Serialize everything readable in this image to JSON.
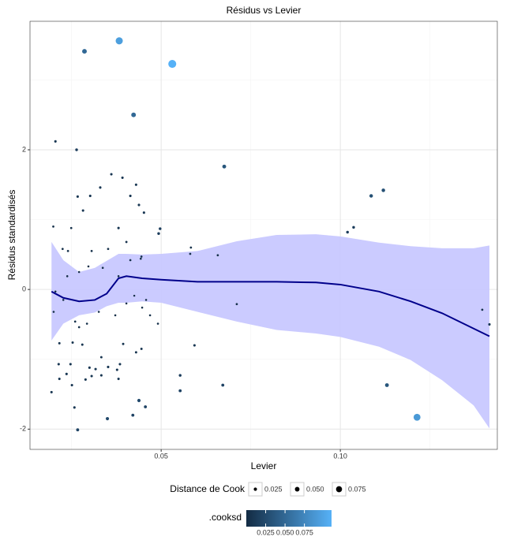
{
  "chart_data": {
    "type": "scatter",
    "title": "Résidus vs Levier",
    "xlabel": "Levier",
    "ylabel": "Résidus standardisés",
    "xlim": [
      0.0134,
      0.1438
    ],
    "ylim": [
      -2.29,
      3.84
    ],
    "xticks": [
      0.05,
      {
        "value": 0.1,
        "label": "0.10"
      }
    ],
    "yticks": [
      -2,
      0,
      2
    ],
    "x_minor_grid": [
      0.025,
      0.075,
      0.125
    ],
    "y_minor_grid": [
      -1,
      1,
      3
    ],
    "grid": true,
    "points": {
      "x": [
        0.0383,
        0.0531,
        0.0286,
        0.0423,
        0.0205,
        0.0264,
        0.0676,
        0.1086,
        0.112,
        0.1037,
        0.102,
        0.113,
        0.1214,
        0.1416,
        0.1396,
        0.0672,
        0.0553,
        0.0553,
        0.0593,
        0.0711,
        0.0658,
        0.0581,
        0.0583,
        0.0493,
        0.0497,
        0.0267,
        0.035,
        0.0421,
        0.0438,
        0.0456,
        0.0194,
        0.0258,
        0.0361,
        0.0392,
        0.043,
        0.033,
        0.0267,
        0.0302,
        0.0414,
        0.0438,
        0.0282,
        0.0452,
        0.0381,
        0.0199,
        0.0249,
        0.0216,
        0.0214,
        0.0247,
        0.0253,
        0.028,
        0.03,
        0.0317,
        0.0333,
        0.0352,
        0.0385,
        0.0394,
        0.043,
        0.0445,
        0.0306,
        0.0289,
        0.0333,
        0.0377,
        0.0236,
        0.0251,
        0.0216,
        0.0381,
        0.026,
        0.0271,
        0.0293,
        0.0326,
        0.0372,
        0.0403,
        0.0425,
        0.0447,
        0.0469,
        0.0491,
        0.0205,
        0.0227,
        0.0238,
        0.0271,
        0.0297,
        0.0337,
        0.0381,
        0.0414,
        0.0443,
        0.0225,
        0.024,
        0.0306,
        0.0352,
        0.0403,
        0.0445,
        0.02,
        0.0458
      ],
      "y": [
        3.56,
        3.23,
        3.41,
        2.5,
        2.12,
        2.0,
        1.76,
        1.34,
        1.42,
        0.89,
        0.82,
        -1.37,
        -1.83,
        -0.5,
        -0.29,
        -1.37,
        -1.23,
        -1.45,
        -0.8,
        -0.21,
        0.49,
        0.51,
        0.6,
        0.8,
        0.87,
        -2.01,
        -1.85,
        -1.8,
        -1.59,
        -1.68,
        -1.47,
        -1.69,
        1.65,
        1.6,
        1.5,
        1.46,
        1.33,
        1.34,
        1.34,
        1.21,
        1.13,
        1.1,
        0.88,
        0.9,
        0.88,
        -0.77,
        -1.07,
        -1.07,
        -0.76,
        -0.79,
        -1.12,
        -1.14,
        -0.97,
        -1.11,
        -1.07,
        -0.78,
        -0.9,
        -0.85,
        -1.24,
        -1.29,
        -1.23,
        -1.15,
        -1.21,
        -1.37,
        -1.28,
        -1.28,
        -0.46,
        -0.54,
        -0.49,
        -0.32,
        -0.37,
        -0.2,
        -0.09,
        -0.26,
        -0.37,
        -0.49,
        -0.03,
        -0.15,
        0.19,
        0.25,
        0.33,
        0.31,
        0.19,
        0.42,
        0.44,
        0.58,
        0.55,
        0.55,
        0.58,
        0.68,
        0.47,
        -0.32,
        -0.15
      ],
      "cooksd": [
        0.095,
        0.11,
        0.05,
        0.05,
        0.01,
        0.015,
        0.035,
        0.03,
        0.03,
        0.015,
        0.015,
        0.035,
        0.09,
        0.01,
        0.005,
        0.02,
        0.015,
        0.02,
        0.01,
        0.005,
        0.005,
        0.005,
        0.005,
        0.015,
        0.015,
        0.02,
        0.025,
        0.02,
        0.025,
        0.02,
        0.01,
        0.01,
        0.01,
        0.01,
        0.01,
        0.01,
        0.01,
        0.01,
        0.01,
        0.01,
        0.01,
        0.01,
        0.01,
        0.005,
        0.005,
        0.008,
        0.01,
        0.01,
        0.008,
        0.008,
        0.01,
        0.01,
        0.008,
        0.01,
        0.01,
        0.008,
        0.008,
        0.008,
        0.01,
        0.01,
        0.01,
        0.01,
        0.01,
        0.01,
        0.01,
        0.01,
        0.004,
        0.004,
        0.004,
        0.003,
        0.003,
        0.002,
        0.001,
        0.002,
        0.003,
        0.004,
        0.002,
        0.002,
        0.002,
        0.002,
        0.003,
        0.003,
        0.002,
        0.004,
        0.004,
        0.005,
        0.005,
        0.005,
        0.005,
        0.006,
        0.004,
        0.003,
        0.002
      ]
    },
    "smooth": {
      "color": "#00008b",
      "fill": "#c8c8ff",
      "x": [
        0.0194,
        0.0227,
        0.0271,
        0.0315,
        0.0348,
        0.0381,
        0.0403,
        0.0447,
        0.05,
        0.0601,
        0.0711,
        0.0822,
        0.0932,
        0.1,
        0.1108,
        0.1196,
        0.1284,
        0.1372,
        0.1416
      ],
      "y": [
        -0.03,
        -0.12,
        -0.17,
        -0.15,
        -0.06,
        0.16,
        0.19,
        0.16,
        0.14,
        0.11,
        0.11,
        0.11,
        0.1,
        0.07,
        -0.03,
        -0.17,
        -0.34,
        -0.56,
        -0.67
      ],
      "lower": [
        -0.73,
        -0.49,
        -0.37,
        -0.33,
        -0.24,
        -0.19,
        -0.19,
        -0.17,
        -0.19,
        -0.32,
        -0.46,
        -0.58,
        -0.63,
        -0.68,
        -0.82,
        -1.01,
        -1.3,
        -1.66,
        -1.99
      ],
      "upper": [
        0.68,
        0.42,
        0.25,
        0.31,
        0.41,
        0.51,
        0.51,
        0.5,
        0.51,
        0.55,
        0.69,
        0.78,
        0.79,
        0.76,
        0.67,
        0.62,
        0.59,
        0.59,
        0.63
      ]
    },
    "size_legend": {
      "title": "Distance de Cook",
      "values": [
        0.025,
        {
          "value": 0.05,
          "label": "0.050"
        },
        0.075
      ]
    },
    "colorbar": {
      "title": ".cooksd",
      "lim": [
        0,
        0.11
      ],
      "colors": [
        "#132B43",
        "#56B1F7"
      ],
      "ticks": [
        0.025,
        {
          "value": 0.05,
          "label": "0.050"
        },
        0.075
      ]
    }
  }
}
